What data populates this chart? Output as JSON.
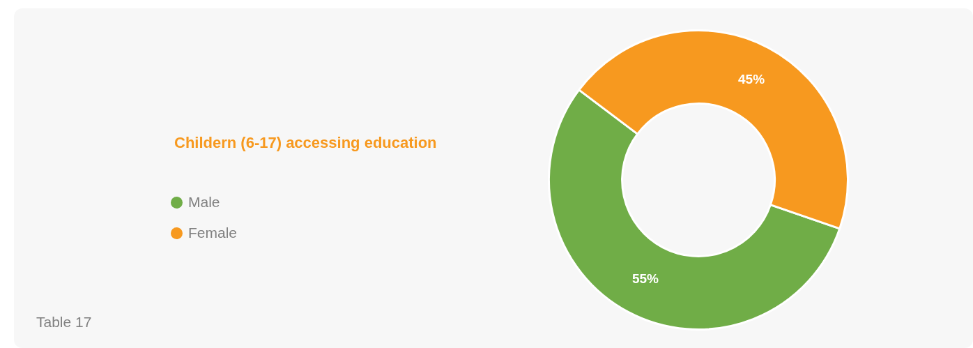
{
  "chart_data": {
    "type": "donut",
    "title": "Childern (6-17) accessing education",
    "categories": [
      "Male",
      "Female"
    ],
    "values": [
      55,
      45
    ],
    "colors": [
      "#70ad47",
      "#f7991f"
    ],
    "value_labels": [
      "55%",
      "45%"
    ],
    "legend": "left",
    "annotations": [
      "Table 17"
    ]
  }
}
